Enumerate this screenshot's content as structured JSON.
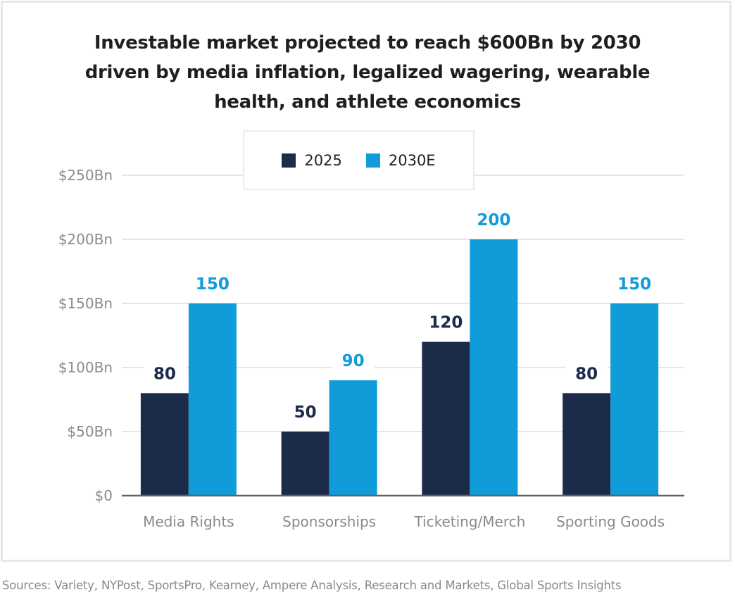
{
  "chart_data": {
    "type": "bar",
    "title_lines": [
      "Investable market projected to reach $600Bn by 2030",
      "driven by media inflation, legalized wagering, wearable",
      "health, and athlete economics"
    ],
    "categories": [
      "Media Rights",
      "Sponsorships",
      "Ticketing/Merch",
      "Sporting Goods"
    ],
    "series": [
      {
        "name": "2025",
        "values": [
          80,
          50,
          120,
          80
        ],
        "color": "#1c2b4a",
        "label_color": "#1c2b4a"
      },
      {
        "name": "2030E",
        "values": [
          150,
          90,
          200,
          150
        ],
        "color": "#109cd9",
        "label_color": "#109cd9"
      }
    ],
    "ylim": [
      0,
      250
    ],
    "yticks": [
      0,
      50,
      100,
      150,
      200,
      250
    ],
    "ytick_labels": [
      "$0",
      "$50Bn",
      "$100Bn",
      "$150Bn",
      "$200Bn",
      "$250Bn"
    ],
    "xlabel": "",
    "ylabel": "",
    "grid": true,
    "legend_position": "top-center",
    "data_labels": true
  },
  "footer": {
    "sources": "Sources: Variety, NYPost, SportsPro, Kearney, Ampere Analysis, Research and Markets, Global Sports Insights"
  }
}
